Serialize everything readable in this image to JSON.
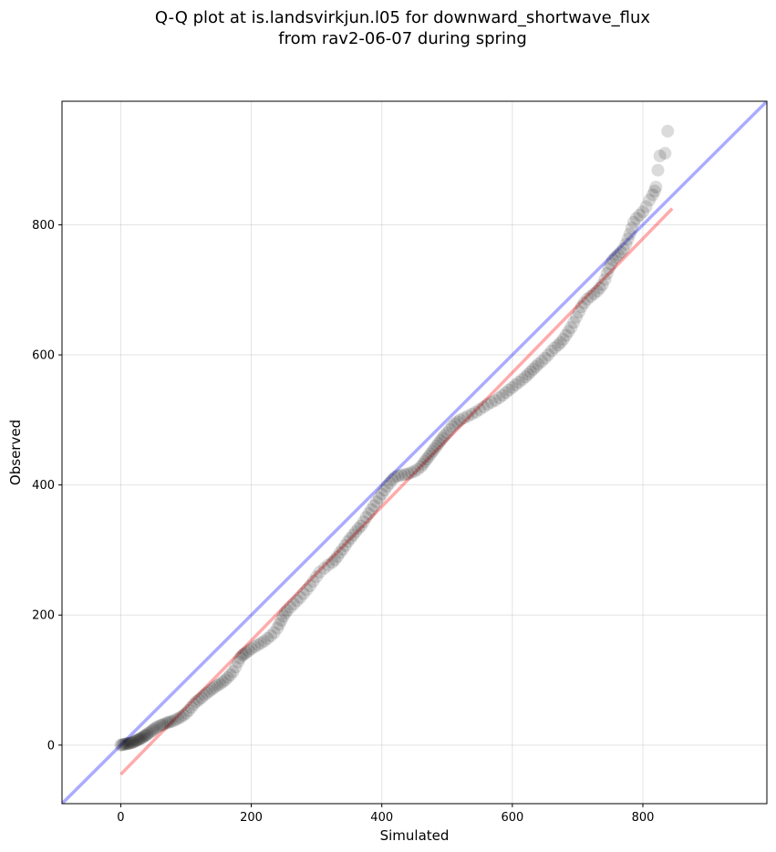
{
  "chart_data": {
    "type": "scatter",
    "title_line1": "Q-Q plot at is.landsvirkjun.l05 for downward_shortwave_flux",
    "title_line2": "from rav2-06-07 during spring",
    "xlabel": "Simulated",
    "ylabel": "Observed",
    "xlim": [
      -90,
      990
    ],
    "ylim": [
      -90,
      990
    ],
    "xticks": [
      0,
      200,
      400,
      600,
      800
    ],
    "yticks": [
      0,
      200,
      400,
      600,
      800
    ],
    "grid": true,
    "reference_line": {
      "x": [
        -90,
        990
      ],
      "y": [
        -90,
        990
      ],
      "color": "#0000ff"
    },
    "fit_line": {
      "x": [
        0,
        845
      ],
      "y": [
        -45,
        825
      ],
      "color": "#ff0000"
    },
    "point_color": "#000000",
    "points": [
      [
        0,
        0
      ],
      [
        2,
        0.5
      ],
      [
        4,
        1
      ],
      [
        6,
        1.5
      ],
      [
        8,
        2
      ],
      [
        10,
        2
      ],
      [
        12,
        2.5
      ],
      [
        14,
        3
      ],
      [
        16,
        3.5
      ],
      [
        18,
        4
      ],
      [
        20,
        5
      ],
      [
        22,
        6
      ],
      [
        24,
        7
      ],
      [
        26,
        8
      ],
      [
        28,
        9
      ],
      [
        30,
        10
      ],
      [
        32,
        11
      ],
      [
        34,
        12
      ],
      [
        36,
        14
      ],
      [
        38,
        15
      ],
      [
        40,
        16
      ],
      [
        42,
        18
      ],
      [
        45,
        20
      ],
      [
        48,
        22
      ],
      [
        50,
        24
      ],
      [
        53,
        26
      ],
      [
        56,
        28
      ],
      [
        60,
        30
      ],
      [
        63,
        31
      ],
      [
        66,
        32
      ],
      [
        70,
        34
      ],
      [
        73,
        35
      ],
      [
        76,
        36
      ],
      [
        80,
        37
      ],
      [
        84,
        39
      ],
      [
        88,
        41
      ],
      [
        92,
        43
      ],
      [
        96,
        46
      ],
      [
        100,
        49
      ],
      [
        104,
        53
      ],
      [
        108,
        58
      ],
      [
        112,
        63
      ],
      [
        116,
        67
      ],
      [
        120,
        70
      ],
      [
        124,
        73
      ],
      [
        128,
        77
      ],
      [
        132,
        80
      ],
      [
        136,
        83
      ],
      [
        140,
        86
      ],
      [
        144,
        89
      ],
      [
        148,
        92
      ],
      [
        152,
        94
      ],
      [
        156,
        97
      ],
      [
        160,
        100
      ],
      [
        164,
        104
      ],
      [
        168,
        108
      ],
      [
        172,
        113
      ],
      [
        176,
        120
      ],
      [
        180,
        128
      ],
      [
        183,
        134
      ],
      [
        186,
        138
      ],
      [
        189,
        140
      ],
      [
        192,
        142
      ],
      [
        196,
        145
      ],
      [
        200,
        148
      ],
      [
        205,
        151
      ],
      [
        210,
        154
      ],
      [
        215,
        157
      ],
      [
        220,
        160
      ],
      [
        225,
        164
      ],
      [
        230,
        168
      ],
      [
        235,
        173
      ],
      [
        240,
        180
      ],
      [
        243,
        186
      ],
      [
        246,
        192
      ],
      [
        249,
        198
      ],
      [
        252,
        203
      ],
      [
        255,
        207
      ],
      [
        260,
        212
      ],
      [
        265,
        217
      ],
      [
        270,
        222
      ],
      [
        275,
        227
      ],
      [
        280,
        233
      ],
      [
        285,
        239
      ],
      [
        290,
        245
      ],
      [
        295,
        252
      ],
      [
        300,
        259
      ],
      [
        305,
        266
      ],
      [
        312,
        272
      ],
      [
        318,
        277
      ],
      [
        324,
        281
      ],
      [
        328,
        285
      ],
      [
        332,
        290
      ],
      [
        336,
        296
      ],
      [
        340,
        301
      ],
      [
        344,
        307
      ],
      [
        348,
        313
      ],
      [
        352,
        318
      ],
      [
        356,
        323
      ],
      [
        360,
        328
      ],
      [
        364,
        333
      ],
      [
        368,
        337
      ],
      [
        372,
        343
      ],
      [
        376,
        350
      ],
      [
        380,
        356
      ],
      [
        384,
        362
      ],
      [
        388,
        368
      ],
      [
        392,
        374
      ],
      [
        396,
        380
      ],
      [
        400,
        386
      ],
      [
        404,
        392
      ],
      [
        408,
        398
      ],
      [
        412,
        403
      ],
      [
        416,
        408
      ],
      [
        420,
        412
      ],
      [
        425,
        414
      ],
      [
        430,
        415
      ],
      [
        435,
        416
      ],
      [
        440,
        417
      ],
      [
        445,
        419
      ],
      [
        450,
        421
      ],
      [
        455,
        424
      ],
      [
        460,
        428
      ],
      [
        463,
        432
      ],
      [
        466,
        436
      ],
      [
        469,
        440
      ],
      [
        472,
        444
      ],
      [
        475,
        448
      ],
      [
        478,
        452
      ],
      [
        481,
        456
      ],
      [
        484,
        460
      ],
      [
        487,
        464
      ],
      [
        490,
        468
      ],
      [
        493,
        472
      ],
      [
        496,
        476
      ],
      [
        500,
        480
      ],
      [
        504,
        485
      ],
      [
        508,
        490
      ],
      [
        512,
        494
      ],
      [
        516,
        497
      ],
      [
        520,
        500
      ],
      [
        526,
        503
      ],
      [
        532,
        506
      ],
      [
        538,
        509
      ],
      [
        544,
        512
      ],
      [
        550,
        516
      ],
      [
        556,
        520
      ],
      [
        562,
        524
      ],
      [
        568,
        527
      ],
      [
        574,
        530
      ],
      [
        580,
        534
      ],
      [
        585,
        538
      ],
      [
        590,
        542
      ],
      [
        595,
        546
      ],
      [
        600,
        550
      ],
      [
        605,
        554
      ],
      [
        610,
        558
      ],
      [
        615,
        562
      ],
      [
        620,
        566
      ],
      [
        624,
        570
      ],
      [
        628,
        574
      ],
      [
        632,
        578
      ],
      [
        636,
        582
      ],
      [
        640,
        586
      ],
      [
        645,
        590
      ],
      [
        650,
        595
      ],
      [
        655,
        600
      ],
      [
        660,
        606
      ],
      [
        665,
        611
      ],
      [
        670,
        615
      ],
      [
        674,
        619
      ],
      [
        678,
        624
      ],
      [
        682,
        630
      ],
      [
        686,
        636
      ],
      [
        690,
        642
      ],
      [
        694,
        650
      ],
      [
        698,
        658
      ],
      [
        702,
        666
      ],
      [
        706,
        674
      ],
      [
        710,
        680
      ],
      [
        715,
        686
      ],
      [
        720,
        690
      ],
      [
        725,
        694
      ],
      [
        730,
        698
      ],
      [
        734,
        703
      ],
      [
        738,
        708
      ],
      [
        742,
        716
      ],
      [
        745,
        725
      ],
      [
        748,
        733
      ],
      [
        751,
        740
      ],
      [
        754,
        746
      ],
      [
        758,
        750
      ],
      [
        762,
        754
      ],
      [
        766,
        758
      ],
      [
        770,
        763
      ],
      [
        774,
        770
      ],
      [
        777,
        778
      ],
      [
        780,
        786
      ],
      [
        783,
        795
      ],
      [
        786,
        804
      ],
      [
        790,
        810
      ],
      [
        795,
        815
      ],
      [
        800,
        820
      ],
      [
        805,
        828
      ],
      [
        810,
        838
      ],
      [
        815,
        846
      ],
      [
        818,
        852
      ],
      [
        820,
        858
      ],
      [
        823,
        884
      ],
      [
        826,
        906
      ],
      [
        834,
        910
      ],
      [
        838,
        944
      ]
    ]
  }
}
